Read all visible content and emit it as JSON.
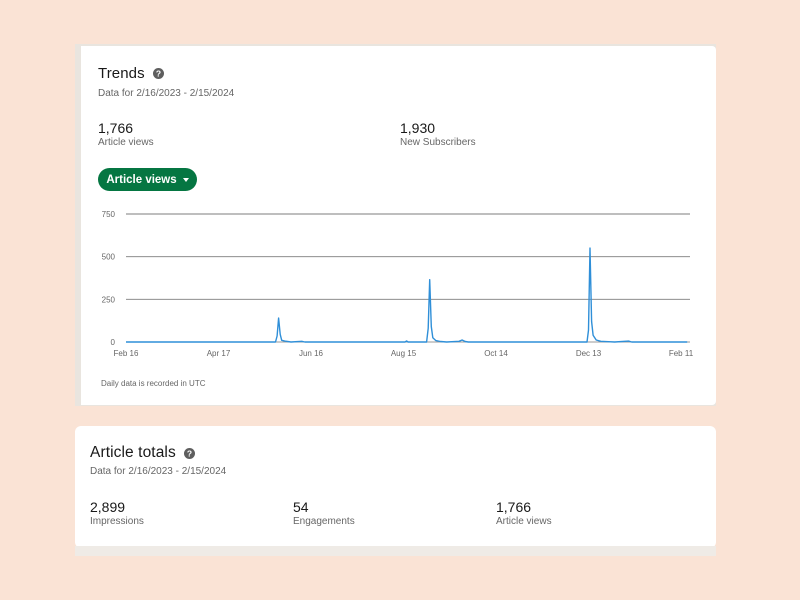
{
  "trends": {
    "title": "Trends",
    "date_range": "Data for 2/16/2023 - 2/15/2024",
    "metrics": [
      {
        "value": "1,766",
        "label": "Article views"
      },
      {
        "value": "1,930",
        "label": "New Subscribers"
      }
    ],
    "selector_label": "Article views",
    "footnote": "Daily data is recorded in UTC"
  },
  "totals": {
    "title": "Article totals",
    "date_range": "Data for 2/16/2023 - 2/15/2024",
    "metrics": [
      {
        "value": "2,899",
        "label": "Impressions"
      },
      {
        "value": "54",
        "label": "Engagements"
      },
      {
        "value": "1,766",
        "label": "Article views"
      }
    ]
  },
  "colors": {
    "accent": "#057642",
    "line": "#2f8fd8",
    "background": "#fae3d5"
  },
  "chart_data": {
    "type": "line",
    "series": [
      {
        "values": [
          {
            "x": "2023-02-16",
            "y": 0
          },
          {
            "x": "2023-05-24",
            "y": 0
          },
          {
            "x": "2023-05-25",
            "y": 35
          },
          {
            "x": "2023-05-26",
            "y": 140
          },
          {
            "x": "2023-05-27",
            "y": 45
          },
          {
            "x": "2023-05-28",
            "y": 10
          },
          {
            "x": "2023-05-30",
            "y": 5
          },
          {
            "x": "2023-06-03",
            "y": 0
          },
          {
            "x": "2023-06-10",
            "y": 4
          },
          {
            "x": "2023-06-12",
            "y": 0
          },
          {
            "x": "2023-08-16",
            "y": 0
          },
          {
            "x": "2023-08-17",
            "y": 6
          },
          {
            "x": "2023-08-18",
            "y": 0
          },
          {
            "x": "2023-08-30",
            "y": 0
          },
          {
            "x": "2023-08-31",
            "y": 80
          },
          {
            "x": "2023-09-01",
            "y": 365
          },
          {
            "x": "2023-09-02",
            "y": 90
          },
          {
            "x": "2023-09-03",
            "y": 25
          },
          {
            "x": "2023-09-05",
            "y": 8
          },
          {
            "x": "2023-09-08",
            "y": 3
          },
          {
            "x": "2023-09-12",
            "y": 0
          },
          {
            "x": "2023-09-20",
            "y": 4
          },
          {
            "x": "2023-09-22",
            "y": 12
          },
          {
            "x": "2023-09-24",
            "y": 3
          },
          {
            "x": "2023-09-26",
            "y": 0
          },
          {
            "x": "2023-12-12",
            "y": 0
          },
          {
            "x": "2023-12-13",
            "y": 70
          },
          {
            "x": "2023-12-14",
            "y": 550
          },
          {
            "x": "2023-12-15",
            "y": 120
          },
          {
            "x": "2023-12-16",
            "y": 40
          },
          {
            "x": "2023-12-18",
            "y": 12
          },
          {
            "x": "2023-12-21",
            "y": 4
          },
          {
            "x": "2023-12-26",
            "y": 2
          },
          {
            "x": "2023-12-30",
            "y": 0
          },
          {
            "x": "2024-01-08",
            "y": 5
          },
          {
            "x": "2024-01-10",
            "y": 0
          },
          {
            "x": "2024-02-15",
            "y": 0
          }
        ]
      }
    ],
    "x_ticks": [
      {
        "date": "2023-02-16",
        "label": "Feb 16"
      },
      {
        "date": "2023-04-17",
        "label": "Apr 17"
      },
      {
        "date": "2023-06-16",
        "label": "Jun 16"
      },
      {
        "date": "2023-08-15",
        "label": "Aug 15"
      },
      {
        "date": "2023-10-14",
        "label": "Oct 14"
      },
      {
        "date": "2023-12-13",
        "label": "Dec 13"
      },
      {
        "date": "2024-02-11",
        "label": "Feb 11"
      }
    ],
    "y_ticks": [
      0,
      250,
      500,
      750
    ],
    "ylim": [
      0,
      750
    ],
    "xlim": [
      "2023-02-16",
      "2024-02-15"
    ],
    "grid": true
  }
}
